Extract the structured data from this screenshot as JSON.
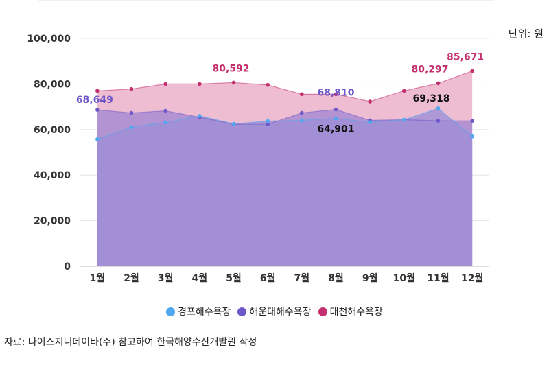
{
  "unit_label": "단위: 원",
  "source": "자료: 나이스지니데이타(주) 참고하여 한국해양수산개발원 작성",
  "chart_data": {
    "type": "area",
    "categories": [
      "1월",
      "2월",
      "3월",
      "4월",
      "5월",
      "6월",
      "7월",
      "8월",
      "9월",
      "10월",
      "11월",
      "12월"
    ],
    "ylim": [
      0,
      100000
    ],
    "yticks": [
      0,
      20000,
      40000,
      60000,
      80000,
      100000
    ],
    "ytick_labels": [
      "0",
      "20,000",
      "40,000",
      "60,000",
      "80,000",
      "100,000"
    ],
    "series": [
      {
        "name": "대천해수욕장",
        "color": "#c2306f",
        "fill": "#e8a7c3",
        "values": [
          77000,
          77800,
          80000,
          80000,
          80592,
          79600,
          75500,
          75500,
          72300,
          77000,
          80297,
          85671
        ]
      },
      {
        "name": "해운대해수욕장",
        "color": "#6e58c9",
        "fill": "#a588d2",
        "values": [
          68649,
          67300,
          68200,
          65400,
          62300,
          62300,
          67300,
          68810,
          64000,
          64300,
          63800,
          63800
        ]
      },
      {
        "name": "경포해수욕장",
        "color": "#4fa8f0",
        "fill": "#9e8fd6",
        "values": [
          55800,
          61000,
          63100,
          66000,
          62500,
          63700,
          64000,
          64901,
          63200,
          64300,
          69318,
          57000
        ]
      }
    ],
    "annotations": [
      {
        "series": "해운대해수욕장",
        "index": 0,
        "text": "68,649"
      },
      {
        "series": "대천해수욕장",
        "index": 4,
        "text": "80,592"
      },
      {
        "series": "해운대해수욕장",
        "index": 7,
        "text": "68,810"
      },
      {
        "series": "경포해수욕장",
        "index": 7,
        "text": "64,901"
      },
      {
        "series": "대천해수욕장",
        "index": 10,
        "text": "80,297"
      },
      {
        "series": "경포해수욕장",
        "index": 10,
        "text": "69,318"
      },
      {
        "series": "대천해수욕장",
        "index": 11,
        "text": "85,671"
      }
    ],
    "legend": [
      "경포해수욕장",
      "해운대해수욕장",
      "대천해수욕장"
    ],
    "legend_position": "bottom",
    "grid": true
  }
}
